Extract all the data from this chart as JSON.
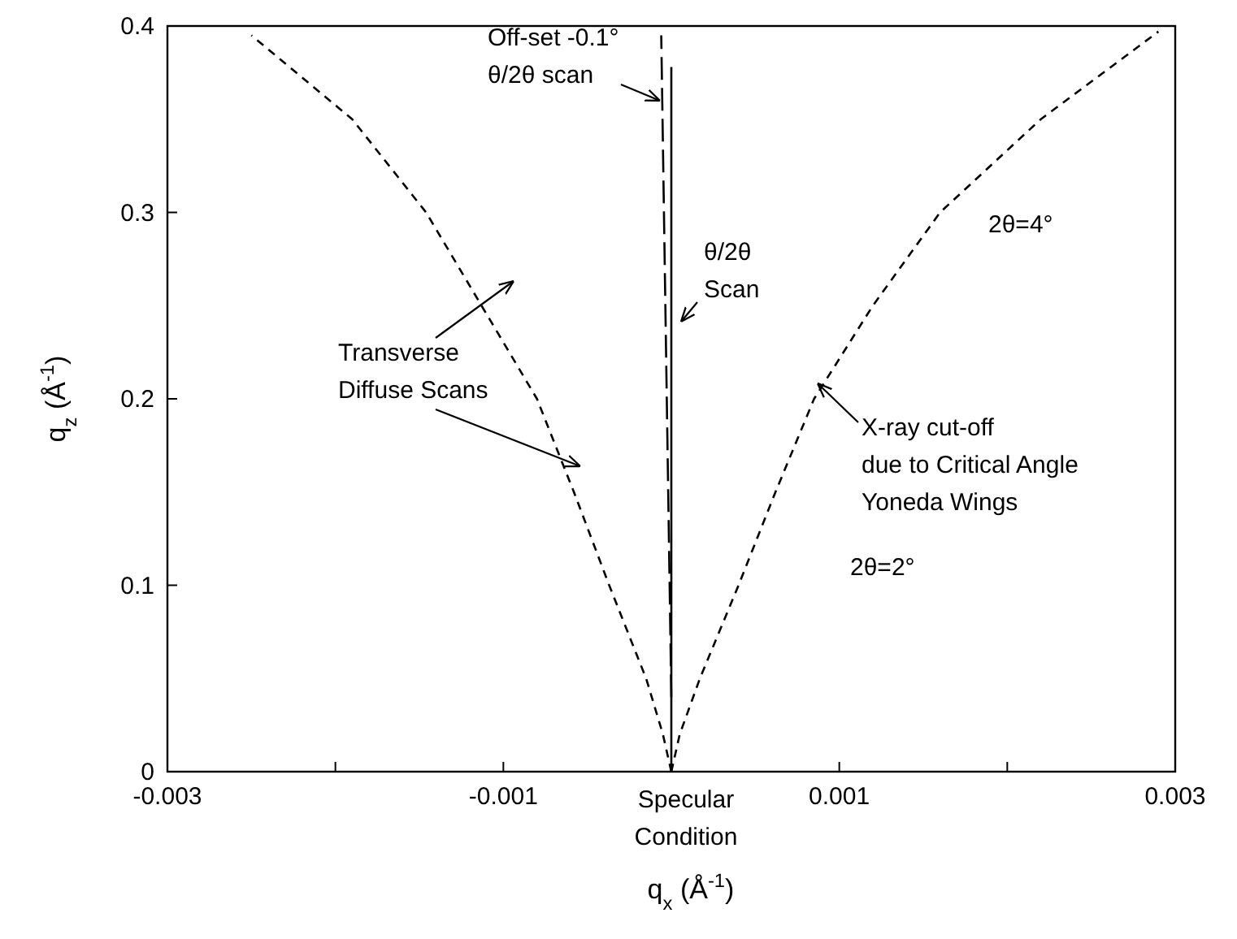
{
  "chart_data": {
    "type": "line",
    "xlabel": "q$_{x}$ (Å$^{-1}$)",
    "ylabel": "q$_{z}$ (Å$^{-1}$)",
    "xlim": [
      -0.003,
      0.003
    ],
    "ylim": [
      0,
      0.4
    ],
    "xticks": [
      -0.003,
      {
        "value": -0.002,
        "label": null
      },
      -0.001,
      0.001,
      {
        "value": 0.002,
        "label": null
      },
      0.003
    ],
    "yticks": [
      0,
      0.1,
      0.2,
      0.3,
      0.4
    ],
    "grid": false,
    "marker": "none",
    "series": [
      {
        "color": "#000000",
        "line_style": "dashed",
        "x": [
          0,
          -5e-05,
          -0.00015,
          -0.00037,
          -0.00058,
          -0.0008,
          -0.00113,
          -0.00146,
          -0.0019,
          -0.0025
        ],
        "values": [
          0,
          0.02,
          0.05,
          0.1,
          0.15,
          0.2,
          0.25,
          0.3,
          0.35,
          0.395
        ]
      },
      {
        "color": "#000000",
        "line_style": "dashed",
        "x": [
          0,
          5e-05,
          0.00017,
          0.0004,
          0.00062,
          0.00085,
          0.0012,
          0.0016,
          0.0022,
          0.0029
        ],
        "values": [
          0,
          0.02,
          0.05,
          0.1,
          0.15,
          0.2,
          0.25,
          0.3,
          0.35,
          0.397
        ]
      },
      {
        "color": "#000000",
        "line_style": "solid",
        "x": [
          0,
          0
        ],
        "values": [
          0,
          0.378
        ]
      },
      {
        "color": "#000000",
        "line_style": "longdash",
        "x": [
          0,
          -6e-05
        ],
        "values": [
          0.04,
          0.395
        ]
      }
    ],
    "annotations": [
      "Off-set -0.1°\nθ/2θ scan",
      "θ/2θ\nScan",
      "Transverse\nDiffuse Scans",
      "X-ray cut-off\ndue to Critical Angle\nYoneda Wings",
      "2θ=4°",
      "2θ=2°",
      "Specular\nCondition"
    ]
  }
}
